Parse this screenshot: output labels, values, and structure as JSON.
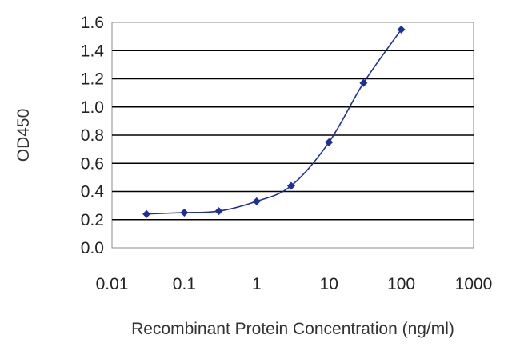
{
  "chart_data": {
    "type": "line",
    "xlabel": "Recombinant Protein Concentration (ng/ml)",
    "ylabel": "OD450",
    "x_scale": "log",
    "xlim": [
      0.01,
      1000
    ],
    "ylim": [
      0.0,
      1.6
    ],
    "x_ticks": [
      0.01,
      0.1,
      1,
      10,
      100,
      1000
    ],
    "x_tick_labels": [
      "0.01",
      "0.1",
      "1",
      "10",
      "100",
      "1000"
    ],
    "y_ticks": [
      0.0,
      0.2,
      0.4,
      0.6,
      0.8,
      1.0,
      1.2,
      1.4,
      1.6
    ],
    "y_tick_labels": [
      "0.0",
      "0.2",
      "0.4",
      "0.6",
      "0.8",
      "1.0",
      "1.2",
      "1.4",
      "1.6"
    ],
    "grid": "horizontal",
    "colors": {
      "series": "#1f2f9a",
      "grid": "#000000",
      "frame": "#888888"
    },
    "series": [
      {
        "x": [
          0.03,
          0.1,
          0.3,
          1,
          3,
          10,
          30,
          100
        ],
        "y": [
          0.24,
          0.25,
          0.26,
          0.33,
          0.44,
          0.75,
          1.17,
          1.55
        ]
      }
    ]
  }
}
